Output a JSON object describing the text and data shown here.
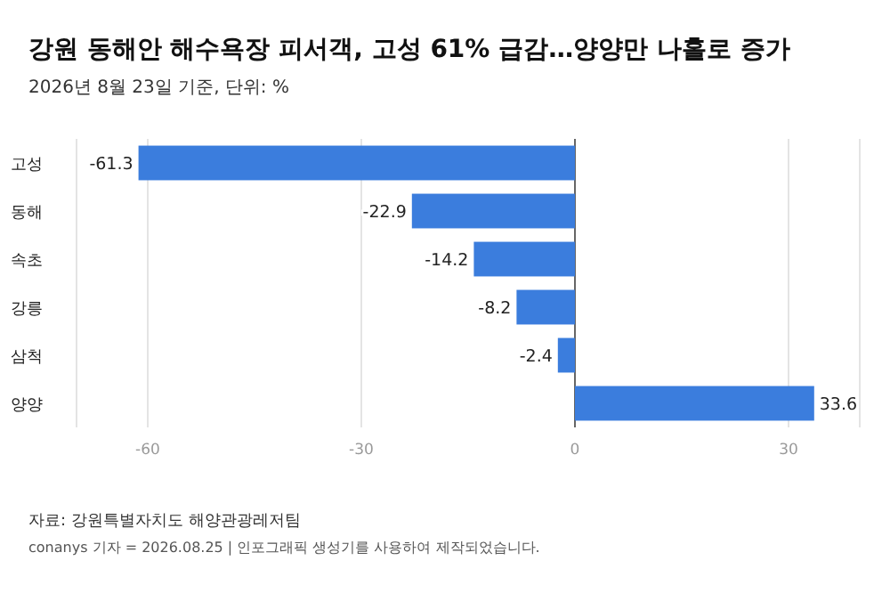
{
  "chart_data": {
    "type": "bar",
    "orientation": "horizontal",
    "title": "강원 동해안 해수욕장 피서객, 고성 61% 급감…양양만 나홀로 증가",
    "subtitle": "2026년 8월 23일 기준, 단위: %",
    "categories": [
      "고성",
      "동해",
      "속초",
      "강릉",
      "삼척",
      "양양"
    ],
    "values": [
      -61.3,
      -22.9,
      -14.2,
      -8.2,
      -2.4,
      33.6
    ],
    "color": "#3b7ddd",
    "data_labels": true,
    "xlim": [
      -70,
      40
    ],
    "xticks": [
      -60,
      -30,
      0,
      30
    ],
    "grid": "x",
    "annotations": [
      "자료: 강원특별자치도 해양관광레저팀",
      "conanys 기자 = 2026.08.25 | 인포그래픽 생성기를 사용하여 제작되었습니다."
    ]
  }
}
